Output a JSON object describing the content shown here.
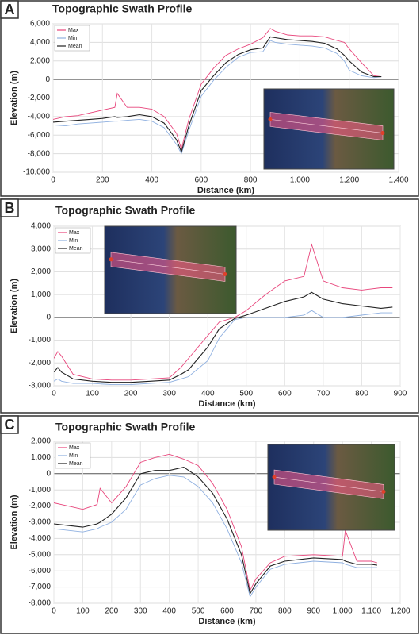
{
  "chart_data": [
    {
      "type": "line",
      "panel_label": "A",
      "title": "Topographic Swath Profile",
      "xlabel": "Distance (km)",
      "ylabel": "Elevation (m)",
      "xlim": [
        0,
        1400
      ],
      "xticks": [
        0,
        200,
        400,
        600,
        800,
        {
          "value": 1000,
          "label": "1,000"
        },
        {
          "value": 1200,
          "label": "1,200"
        },
        {
          "value": 1400,
          "label": "1,400"
        }
      ],
      "ylim": [
        -10000,
        6000
      ],
      "yticks": [
        {
          "value": -10000,
          "label": "-10,000"
        },
        {
          "value": -8000,
          "label": "-8,000"
        },
        {
          "value": -6000,
          "label": "-6,000"
        },
        {
          "value": -4000,
          "label": "-4,000"
        },
        {
          "value": -2000,
          "label": "-2,000"
        },
        0,
        {
          "value": 2000,
          "label": "2,000"
        },
        {
          "value": 4000,
          "label": "4,000"
        },
        {
          "value": 6000,
          "label": "6,000"
        }
      ],
      "grid": true,
      "legend": "upper left",
      "x": [
        0,
        50,
        100,
        150,
        200,
        250,
        260,
        300,
        350,
        400,
        450,
        500,
        520,
        550,
        600,
        650,
        700,
        750,
        800,
        850,
        880,
        900,
        950,
        1000,
        1050,
        1100,
        1150,
        1180,
        1200,
        1250,
        1300,
        1330
      ],
      "series": [
        {
          "name": "Max",
          "color": "#e8467c",
          "values": [
            -4300,
            -4000,
            -3900,
            -3600,
            -3300,
            -3000,
            -1500,
            -3000,
            -3000,
            -3200,
            -4000,
            -5800,
            -7500,
            -4300,
            -500,
            1200,
            2600,
            3300,
            3800,
            4500,
            5500,
            5200,
            4800,
            4700,
            4700,
            4600,
            4200,
            4000,
            3300,
            1800,
            400,
            300
          ]
        },
        {
          "name": "Min",
          "color": "#8fb0e0",
          "values": [
            -4900,
            -5000,
            -4800,
            -4700,
            -4600,
            -4500,
            -4500,
            -4400,
            -4300,
            -4500,
            -5200,
            -7000,
            -8000,
            -5500,
            -1800,
            -100,
            1300,
            2400,
            2900,
            3000,
            4200,
            4000,
            3800,
            3700,
            3600,
            3400,
            2800,
            2000,
            1000,
            400,
            200,
            300
          ]
        },
        {
          "name": "Mean",
          "color": "#222222",
          "values": [
            -4600,
            -4500,
            -4400,
            -4300,
            -4200,
            -4000,
            -4100,
            -4000,
            -3800,
            -4000,
            -4700,
            -6500,
            -7800,
            -5000,
            -1200,
            400,
            1800,
            2700,
            3200,
            3400,
            4600,
            4500,
            4300,
            4200,
            4100,
            3900,
            3300,
            2600,
            2000,
            800,
            300,
            300
          ]
        }
      ]
    },
    {
      "type": "line",
      "panel_label": "B",
      "title": "Topographic Swath Profile",
      "xlabel": "Distance (km)",
      "ylabel": "Elevation (m)",
      "xlim": [
        0,
        900
      ],
      "xticks": [
        0,
        100,
        200,
        300,
        400,
        500,
        600,
        700,
        800,
        900
      ],
      "ylim": [
        -3000,
        4000
      ],
      "yticks": [
        {
          "value": -3000,
          "label": "-3,000"
        },
        {
          "value": -2000,
          "label": "-2,000"
        },
        {
          "value": -1000,
          "label": "-1,000"
        },
        0,
        {
          "value": 1000,
          "label": "1,000"
        },
        {
          "value": 2000,
          "label": "2,000"
        },
        {
          "value": 3000,
          "label": "3,000"
        },
        {
          "value": 4000,
          "label": "4,000"
        }
      ],
      "grid": true,
      "legend": "upper left",
      "x": [
        0,
        10,
        20,
        50,
        100,
        150,
        200,
        250,
        300,
        330,
        350,
        400,
        430,
        470,
        500,
        550,
        600,
        650,
        670,
        700,
        750,
        800,
        850,
        880
      ],
      "series": [
        {
          "name": "Max",
          "color": "#e8467c",
          "values": [
            -1800,
            -1500,
            -1700,
            -2500,
            -2700,
            -2750,
            -2750,
            -2700,
            -2650,
            -2200,
            -1800,
            -800,
            -200,
            0,
            300,
            1000,
            1600,
            1800,
            3200,
            1600,
            1300,
            1200,
            1300,
            1300
          ]
        },
        {
          "name": "Min",
          "color": "#8fb0e0",
          "values": [
            -2800,
            -2700,
            -2800,
            -2900,
            -2900,
            -2950,
            -2950,
            -2900,
            -2850,
            -2700,
            -2600,
            -1900,
            -900,
            -100,
            0,
            0,
            0,
            100,
            300,
            0,
            0,
            100,
            200,
            200
          ]
        },
        {
          "name": "Mean",
          "color": "#222222",
          "values": [
            -2400,
            -2200,
            -2400,
            -2700,
            -2800,
            -2850,
            -2850,
            -2800,
            -2750,
            -2500,
            -2300,
            -1300,
            -500,
            -50,
            100,
            400,
            700,
            900,
            1100,
            800,
            600,
            500,
            400,
            450
          ]
        }
      ]
    },
    {
      "type": "line",
      "panel_label": "C",
      "title": "Topographic Swath Profile",
      "xlabel": "Distance (km)",
      "ylabel": "Elevation (m)",
      "xlim": [
        0,
        1200
      ],
      "xticks": [
        0,
        100,
        200,
        300,
        400,
        500,
        600,
        700,
        800,
        900,
        {
          "value": 1000,
          "label": "1,000"
        },
        {
          "value": 1100,
          "label": "1,100"
        },
        {
          "value": 1200,
          "label": "1,200"
        }
      ],
      "ylim": [
        -8000,
        2000
      ],
      "yticks": [
        {
          "value": -8000,
          "label": "-8,000"
        },
        {
          "value": -7000,
          "label": "-7,000"
        },
        {
          "value": -6000,
          "label": "-6,000"
        },
        {
          "value": -5000,
          "label": "-5,000"
        },
        {
          "value": -4000,
          "label": "-4,000"
        },
        {
          "value": -3000,
          "label": "-3,000"
        },
        {
          "value": -2000,
          "label": "-2,000"
        },
        {
          "value": -1000,
          "label": "-1,000"
        },
        0,
        {
          "value": 1000,
          "label": "1,000"
        },
        {
          "value": 2000,
          "label": "2,000"
        }
      ],
      "grid": true,
      "legend": "upper left",
      "x": [
        0,
        50,
        100,
        150,
        160,
        200,
        250,
        300,
        350,
        400,
        450,
        500,
        550,
        600,
        650,
        680,
        700,
        750,
        800,
        900,
        1000,
        1010,
        1050,
        1100,
        1120
      ],
      "series": [
        {
          "name": "Max",
          "color": "#e8467c",
          "values": [
            -1800,
            -2000,
            -2200,
            -1900,
            -900,
            -1800,
            -800,
            700,
            1000,
            1200,
            900,
            500,
            -600,
            -2200,
            -4500,
            -7200,
            -6500,
            -5500,
            -5100,
            -5000,
            -5100,
            -3500,
            -5400,
            -5400,
            -5500
          ]
        },
        {
          "name": "Min",
          "color": "#8fb0e0",
          "values": [
            -3400,
            -3500,
            -3600,
            -3400,
            -3300,
            -3000,
            -2200,
            -700,
            -300,
            -100,
            -200,
            -800,
            -1800,
            -3400,
            -5500,
            -7600,
            -7000,
            -5900,
            -5600,
            -5400,
            -5500,
            -5600,
            -5800,
            -5800,
            -5800
          ]
        },
        {
          "name": "Mean",
          "color": "#222222",
          "values": [
            -3100,
            -3200,
            -3300,
            -3100,
            -3000,
            -2500,
            -1500,
            0,
            200,
            200,
            400,
            -200,
            -1200,
            -2800,
            -5000,
            -7400,
            -6800,
            -5700,
            -5400,
            -5200,
            -5300,
            -5400,
            -5600,
            -5600,
            -5650
          ]
        }
      ]
    }
  ]
}
